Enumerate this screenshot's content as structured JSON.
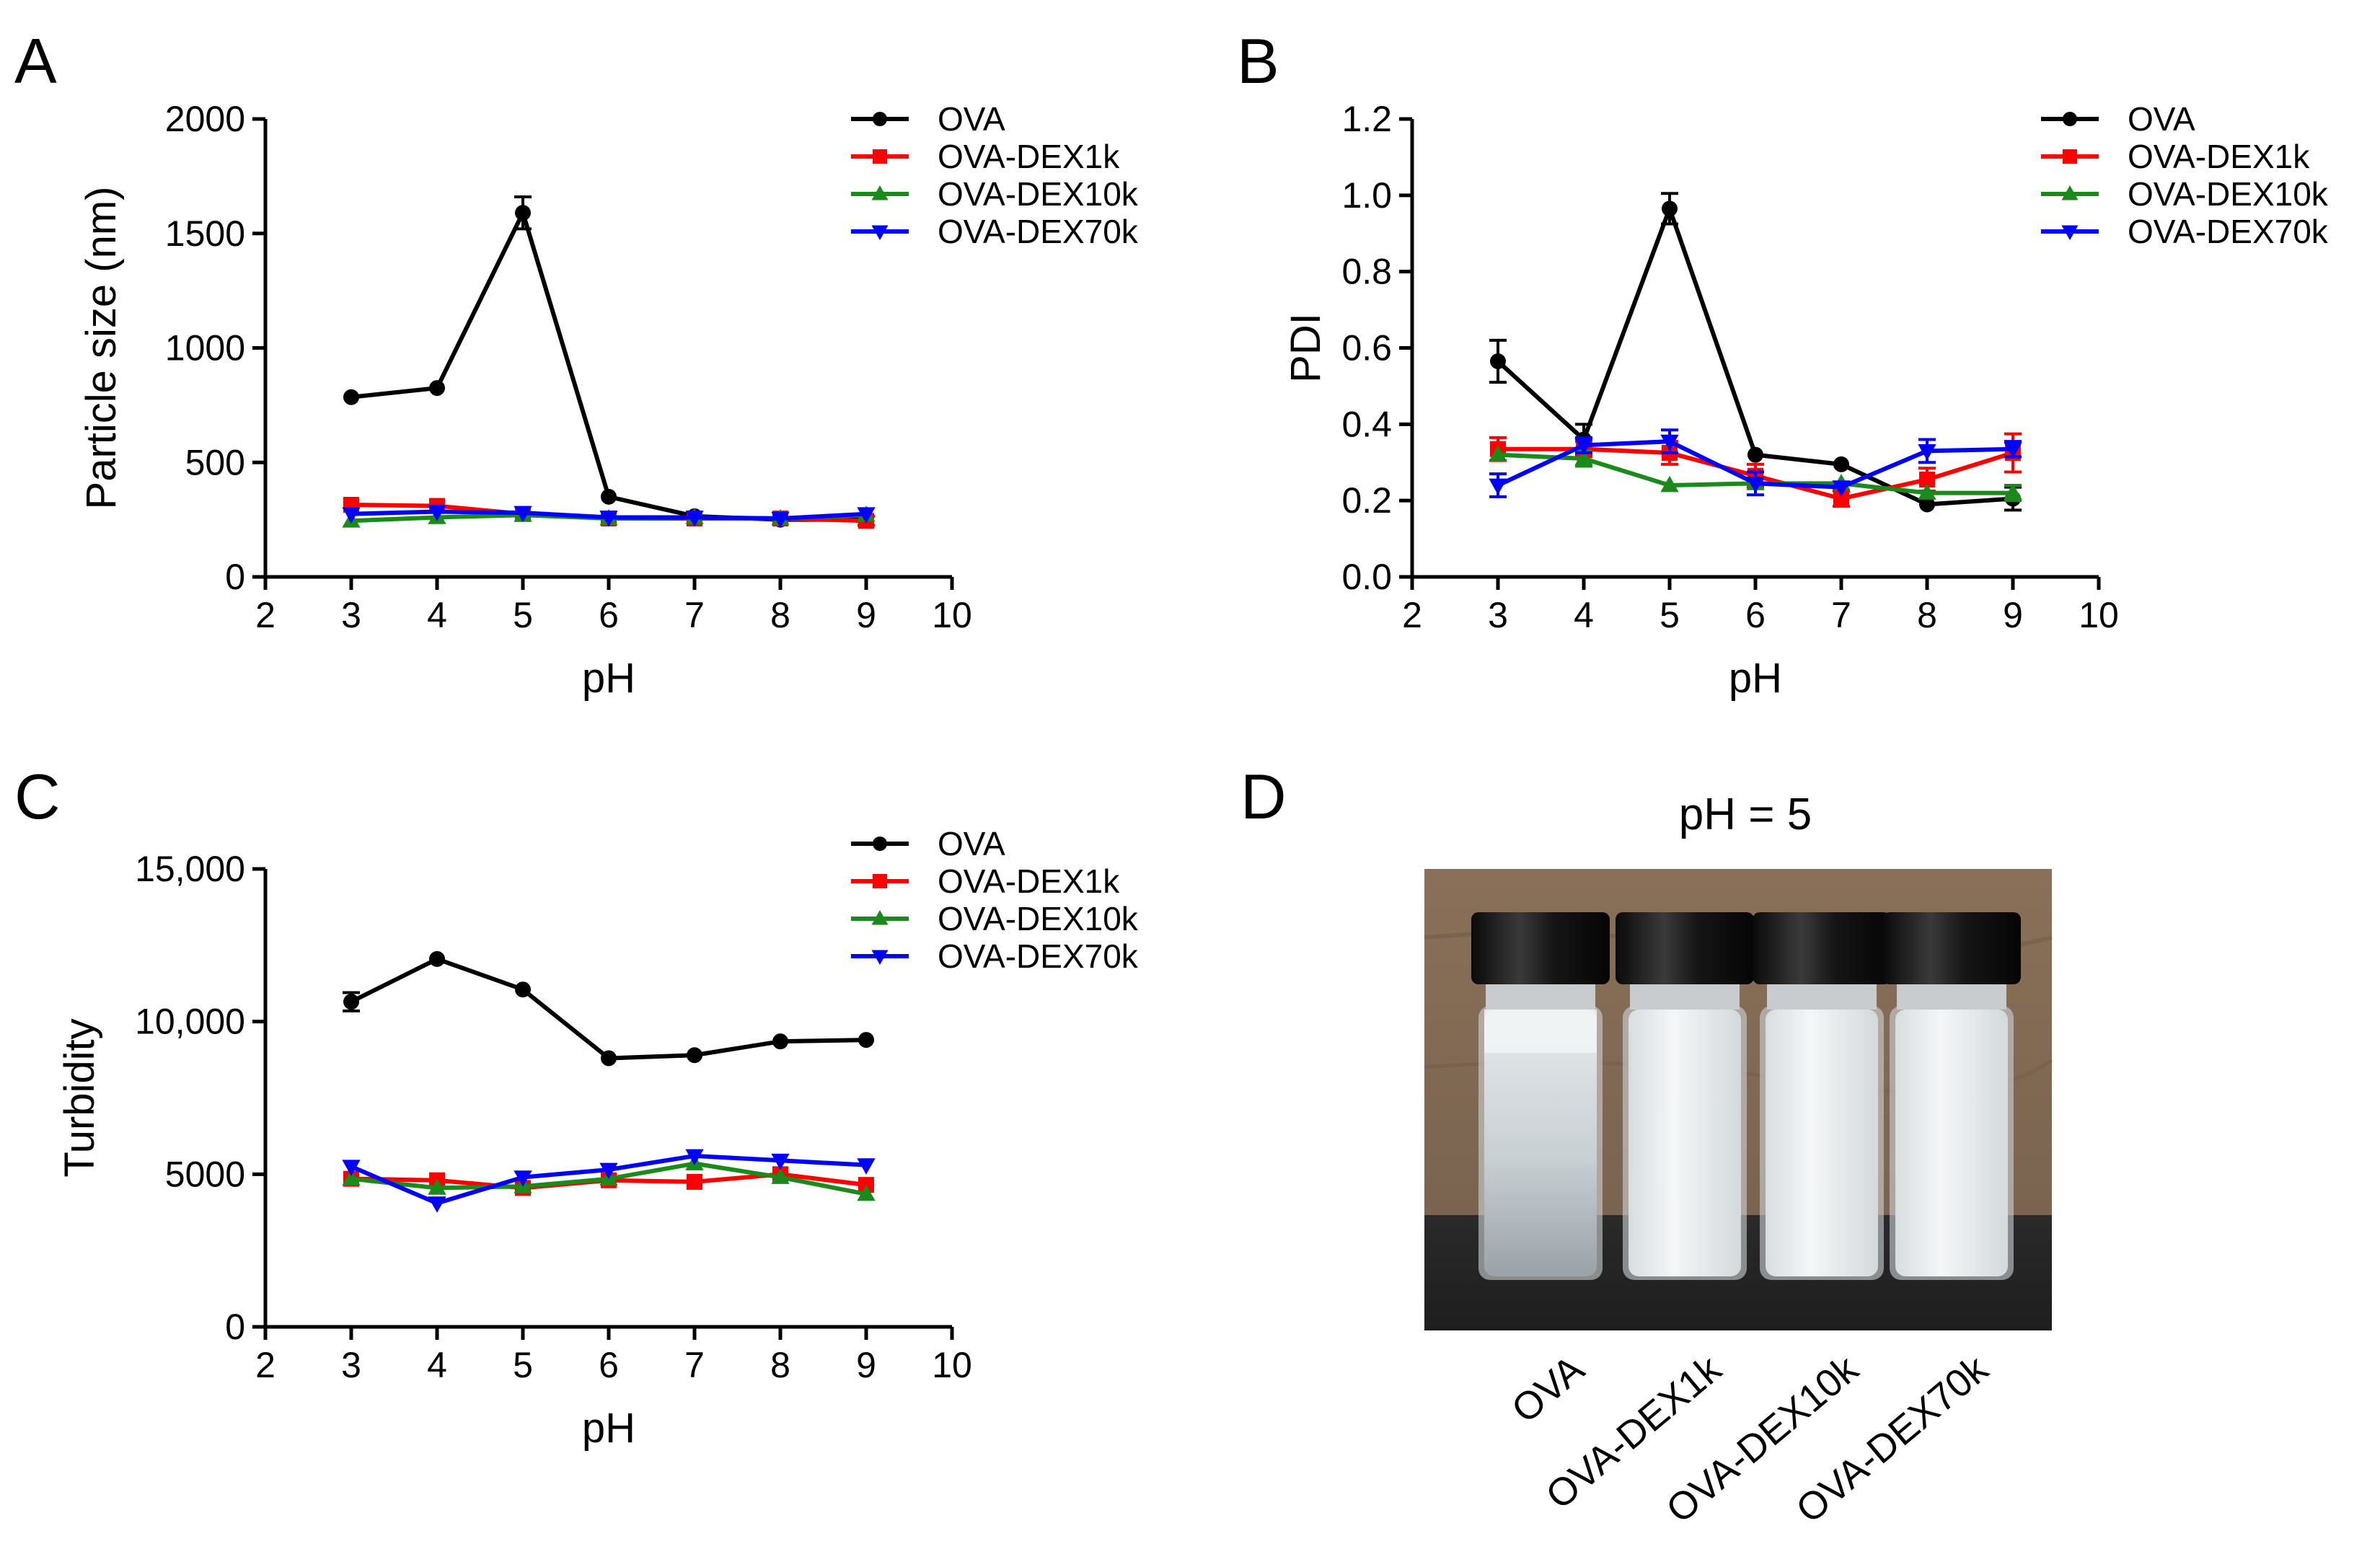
{
  "panels": {
    "A": {
      "letter": "A"
    },
    "B": {
      "letter": "B"
    },
    "C": {
      "letter": "C"
    },
    "D": {
      "letter": "D"
    }
  },
  "colors": {
    "OVA": "#000000",
    "OVA-DEX1k": "#ff0000",
    "OVA-DEX10k": "#1a8a1a",
    "OVA-DEX70k": "#0000ff"
  },
  "chart_data": [
    {
      "id": "A",
      "type": "line",
      "title": "",
      "xlabel": "pH",
      "ylabel": "Particle size (nm)",
      "xlim": [
        2,
        10
      ],
      "ylim": [
        0,
        2000
      ],
      "xticks": [
        2,
        3,
        4,
        5,
        6,
        7,
        8,
        9,
        10
      ],
      "yticks": [
        0,
        500,
        1000,
        1500,
        2000
      ],
      "ytick_labels": [
        "0",
        "500",
        "1000",
        "1500",
        "2000"
      ],
      "legend_position": "top-right",
      "x": [
        3,
        4,
        5,
        6,
        7,
        8,
        9
      ],
      "series": [
        {
          "name": "OVA",
          "marker": "circle",
          "values": [
            785,
            825,
            1590,
            350,
            265,
            250,
            250
          ],
          "error": [
            0,
            0,
            70,
            0,
            0,
            0,
            0
          ]
        },
        {
          "name": "OVA-DEX1k",
          "marker": "square",
          "values": [
            315,
            310,
            275,
            255,
            255,
            255,
            245
          ],
          "error": [
            0,
            0,
            0,
            0,
            0,
            0,
            20
          ]
        },
        {
          "name": "OVA-DEX10k",
          "marker": "triangle-up",
          "values": [
            245,
            260,
            270,
            255,
            260,
            255,
            270
          ],
          "error": [
            0,
            0,
            0,
            0,
            0,
            0,
            0
          ]
        },
        {
          "name": "OVA-DEX70k",
          "marker": "triangle-down",
          "values": [
            275,
            285,
            280,
            260,
            260,
            255,
            275
          ],
          "error": [
            0,
            0,
            0,
            0,
            0,
            0,
            0
          ]
        }
      ]
    },
    {
      "id": "B",
      "type": "line",
      "title": "",
      "xlabel": "pH",
      "ylabel": "PDI",
      "xlim": [
        2,
        10
      ],
      "ylim": [
        0,
        1.2
      ],
      "xticks": [
        2,
        3,
        4,
        5,
        6,
        7,
        8,
        9,
        10
      ],
      "yticks": [
        0,
        0.2,
        0.4,
        0.6,
        0.8,
        1.0,
        1.2
      ],
      "ytick_labels": [
        "0.0",
        "0.2",
        "0.4",
        "0.6",
        "0.8",
        "1.0",
        "1.2"
      ],
      "legend_position": "top-right",
      "x": [
        3,
        4,
        5,
        6,
        7,
        8,
        9
      ],
      "series": [
        {
          "name": "OVA",
          "marker": "circle",
          "values": [
            0.565,
            0.36,
            0.965,
            0.32,
            0.295,
            0.19,
            0.205
          ],
          "error": [
            0.055,
            0.04,
            0.04,
            0,
            0,
            0,
            0.03
          ]
        },
        {
          "name": "OVA-DEX1k",
          "marker": "square",
          "values": [
            0.335,
            0.335,
            0.325,
            0.265,
            0.205,
            0.255,
            0.325
          ],
          "error": [
            0.03,
            0.02,
            0.03,
            0.03,
            0.02,
            0.03,
            0.05
          ]
        },
        {
          "name": "OVA-DEX10k",
          "marker": "triangle-up",
          "values": [
            0.32,
            0.31,
            0.24,
            0.245,
            0.245,
            0.22,
            0.22
          ],
          "error": [
            0,
            0.02,
            0,
            0,
            0,
            0,
            0.02
          ]
        },
        {
          "name": "OVA-DEX70k",
          "marker": "triangle-down",
          "values": [
            0.24,
            0.345,
            0.355,
            0.245,
            0.235,
            0.33,
            0.335
          ],
          "error": [
            0.03,
            0.02,
            0.03,
            0.03,
            0,
            0.03,
            0.02
          ]
        }
      ]
    },
    {
      "id": "C",
      "type": "line",
      "title": "",
      "xlabel": "pH",
      "ylabel": "Turbidity",
      "xlim": [
        2,
        10
      ],
      "ylim": [
        0,
        15000
      ],
      "xticks": [
        2,
        3,
        4,
        5,
        6,
        7,
        8,
        9,
        10
      ],
      "yticks": [
        0,
        5000,
        10000,
        15000
      ],
      "ytick_labels": [
        "0",
        "5000",
        "10,000",
        "15,000"
      ],
      "legend_position": "top-right",
      "x": [
        3,
        4,
        5,
        6,
        7,
        8,
        9
      ],
      "series": [
        {
          "name": "OVA",
          "marker": "circle",
          "values": [
            10650,
            12050,
            11050,
            8800,
            8900,
            9350,
            9400
          ],
          "error": [
            300,
            0,
            0,
            0,
            0,
            0,
            0
          ]
        },
        {
          "name": "OVA-DEX1k",
          "marker": "square",
          "values": [
            4850,
            4800,
            4550,
            4800,
            4750,
            5000,
            4650
          ],
          "error": [
            0,
            0,
            0,
            0,
            0,
            0,
            0
          ]
        },
        {
          "name": "OVA-DEX10k",
          "marker": "triangle-up",
          "values": [
            4850,
            4550,
            4600,
            4850,
            5350,
            4900,
            4350
          ],
          "error": [
            0,
            0,
            0,
            0,
            0,
            0,
            0
          ]
        },
        {
          "name": "OVA-DEX70k",
          "marker": "triangle-down",
          "values": [
            5250,
            4050,
            4900,
            5150,
            5600,
            5450,
            5300
          ],
          "error": [
            0,
            0,
            0,
            0,
            0,
            0,
            0
          ]
        }
      ]
    }
  ],
  "photo": {
    "title": "pH = 5",
    "vial_labels": [
      "OVA",
      "OVA-DEX1k",
      "OVA-DEX10k",
      "OVA-DEX70k"
    ]
  }
}
